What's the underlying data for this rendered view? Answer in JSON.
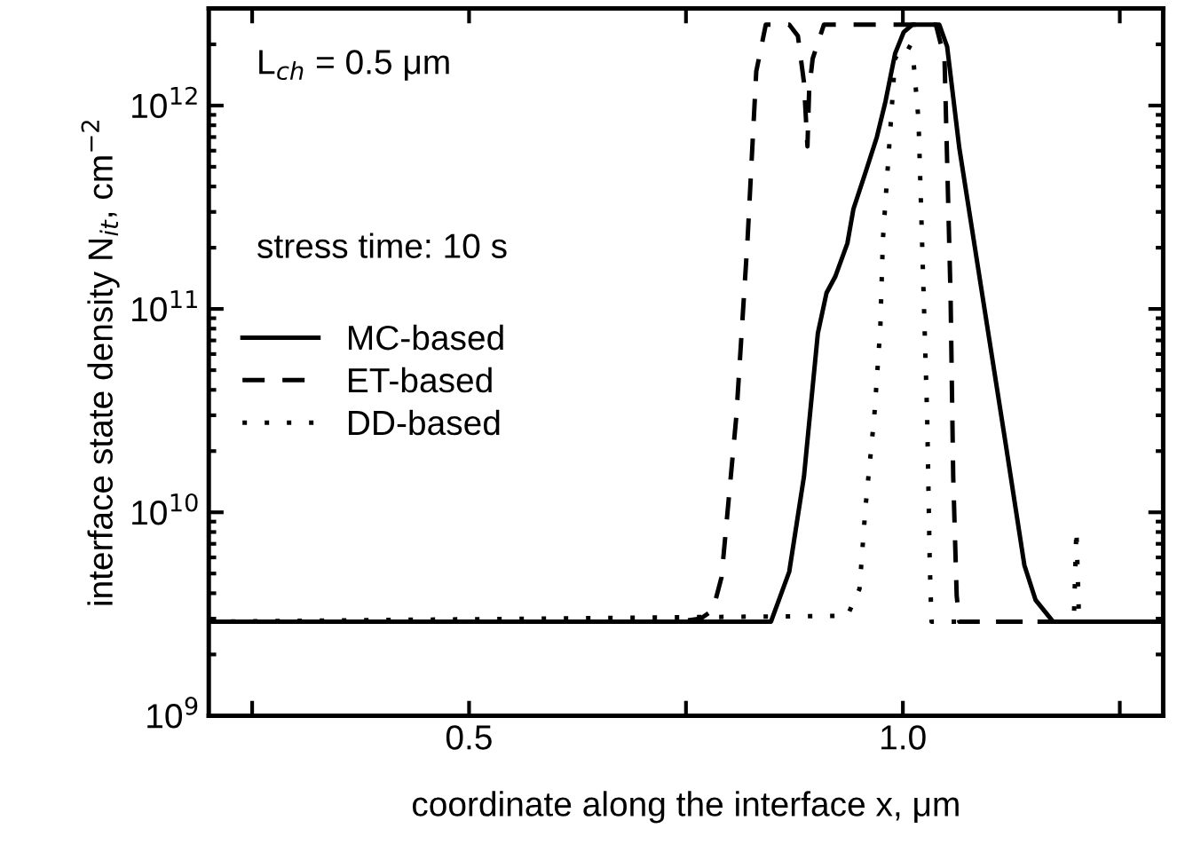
{
  "chart_data": {
    "type": "line",
    "xlabel": "coordinate along the interface x, μm",
    "ylabel": "interface state density N$_{it}$, cm$^{−2}$",
    "log": "y",
    "xlim": [
      0.2,
      1.3
    ],
    "ylim": [
      1000000000.0,
      3000000000000.0
    ],
    "xticks": [
      {
        "value": 0.25,
        "label": null
      },
      {
        "value": 0.5,
        "label": "0.5"
      },
      {
        "value": 0.75,
        "label": null
      },
      {
        "value": 1.0,
        "label": "1.0"
      },
      {
        "value": 1.25,
        "label": null
      }
    ],
    "yticks": [
      {
        "value": 1000000000.0,
        "label": "10$^{9}$"
      },
      {
        "value": 10000000000.0,
        "label": "10$^{10}$"
      },
      {
        "value": 100000000000.0,
        "label": "10$^{11}$"
      },
      {
        "value": 1000000000000.0,
        "label": "10$^{12}$"
      }
    ],
    "grid": false,
    "legend": "left",
    "marker": "none",
    "annotations": [
      "L$_{ch}$ = 0.5 μm",
      "stress time: 10 s"
    ],
    "series": [
      {
        "name": "MC-based",
        "color": "#000000",
        "line_style": "solid",
        "x": [
          0.2,
          0.848,
          0.869,
          0.886,
          0.902,
          0.912,
          0.922,
          0.936,
          0.943,
          0.957,
          0.97,
          0.98,
          0.991,
          1.001,
          1.011,
          1.042,
          1.051,
          1.065,
          1.092,
          1.119,
          1.14,
          1.153,
          1.173,
          1.3
        ],
        "values": [
          2900000000.0,
          2900000000.0,
          5100000000.0,
          15000000000.0,
          76000000000.0,
          120000000000.0,
          144000000000.0,
          210000000000.0,
          310000000000.0,
          470000000000.0,
          700000000000.0,
          1050000000000.0,
          1800000000000.0,
          2300000000000.0,
          2500000000000.0,
          2500000000000.0,
          1950000000000.0,
          620000000000.0,
          114000000000.0,
          21000000000.0,
          5500000000.0,
          3700000000.0,
          2900000000.0,
          2900000000.0
        ]
      },
      {
        "name": "ET-based",
        "color": "#000000",
        "line_style": "dashed",
        "x": [
          0.2,
          0.74,
          0.767,
          0.781,
          0.791,
          0.808,
          0.821,
          0.831,
          0.842,
          0.869,
          0.879,
          0.886,
          0.89,
          0.892,
          0.896,
          0.909,
          1.038,
          1.048,
          1.055,
          1.058,
          1.062,
          1.065,
          1.3
        ],
        "values": [
          2900000000.0,
          2900000000.0,
          3000000000.0,
          3300000000.0,
          4800000000.0,
          29500000000.0,
          220000000000.0,
          1470000000000.0,
          2500000000000.0,
          2500000000000.0,
          2200000000000.0,
          1300000000000.0,
          630000000000.0,
          1200000000000.0,
          1700000000000.0,
          2500000000000.0,
          2500000000000.0,
          1700000000000.0,
          114000000000.0,
          15000000000.0,
          3900000000.0,
          2900000000.0,
          2900000000.0
        ]
      },
      {
        "name": "DD-based",
        "color": "#000000",
        "line_style": "dotted",
        "x": [
          0.2,
          0.936,
          0.95,
          0.957,
          0.967,
          0.974,
          0.977,
          0.984,
          0.991,
          1.001,
          1.011,
          1.018,
          1.023,
          1.028,
          1.031,
          1.033,
          1.197,
          1.2,
          1.203,
          1.207,
          1.3
        ],
        "values": [
          2900000000.0,
          3100000000.0,
          4200000000.0,
          10700000000.0,
          29500000000.0,
          81000000000.0,
          220000000000.0,
          610000000000.0,
          1700000000000.0,
          2000000000000.0,
          1900000000000.0,
          850000000000.0,
          160000000000.0,
          29500000000.0,
          5500000000.0,
          2900000000.0,
          2900000000.0,
          8200000000.0,
          3000000000.0,
          2900000000.0,
          2900000000.0
        ]
      }
    ]
  }
}
